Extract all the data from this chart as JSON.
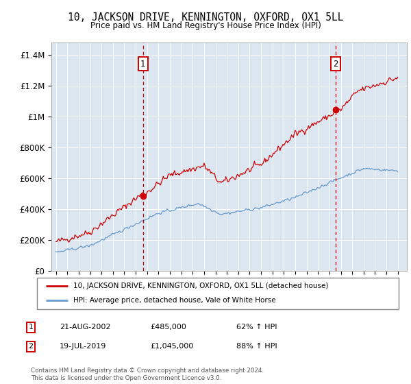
{
  "title": "10, JACKSON DRIVE, KENNINGTON, OXFORD, OX1 5LL",
  "subtitle": "Price paid vs. HM Land Registry's House Price Index (HPI)",
  "legend_line1": "10, JACKSON DRIVE, KENNINGTON, OXFORD, OX1 5LL (detached house)",
  "legend_line2": "HPI: Average price, detached house, Vale of White Horse",
  "annotation1_date": "21-AUG-2002",
  "annotation1_price": "£485,000",
  "annotation1_hpi": "62% ↑ HPI",
  "annotation1_year": 2002.63,
  "annotation1_value": 485000,
  "annotation2_date": "19-JUL-2019",
  "annotation2_price": "£1,045,000",
  "annotation2_hpi": "88% ↑ HPI",
  "annotation2_year": 2019.55,
  "annotation2_value": 1045000,
  "footnote1": "Contains HM Land Registry data © Crown copyright and database right 2024.",
  "footnote2": "This data is licensed under the Open Government Licence v3.0.",
  "red_color": "#cc0000",
  "blue_color": "#6699cc",
  "bg_color": "#dce6f1",
  "yticks": [
    0,
    200000,
    400000,
    600000,
    800000,
    1000000,
    1200000,
    1400000
  ],
  "ytick_labels": [
    "£0",
    "£200K",
    "£400K",
    "£600K",
    "£800K",
    "£1M",
    "£1.2M",
    "£1.4M"
  ],
  "xstart": 1995,
  "xend": 2025
}
